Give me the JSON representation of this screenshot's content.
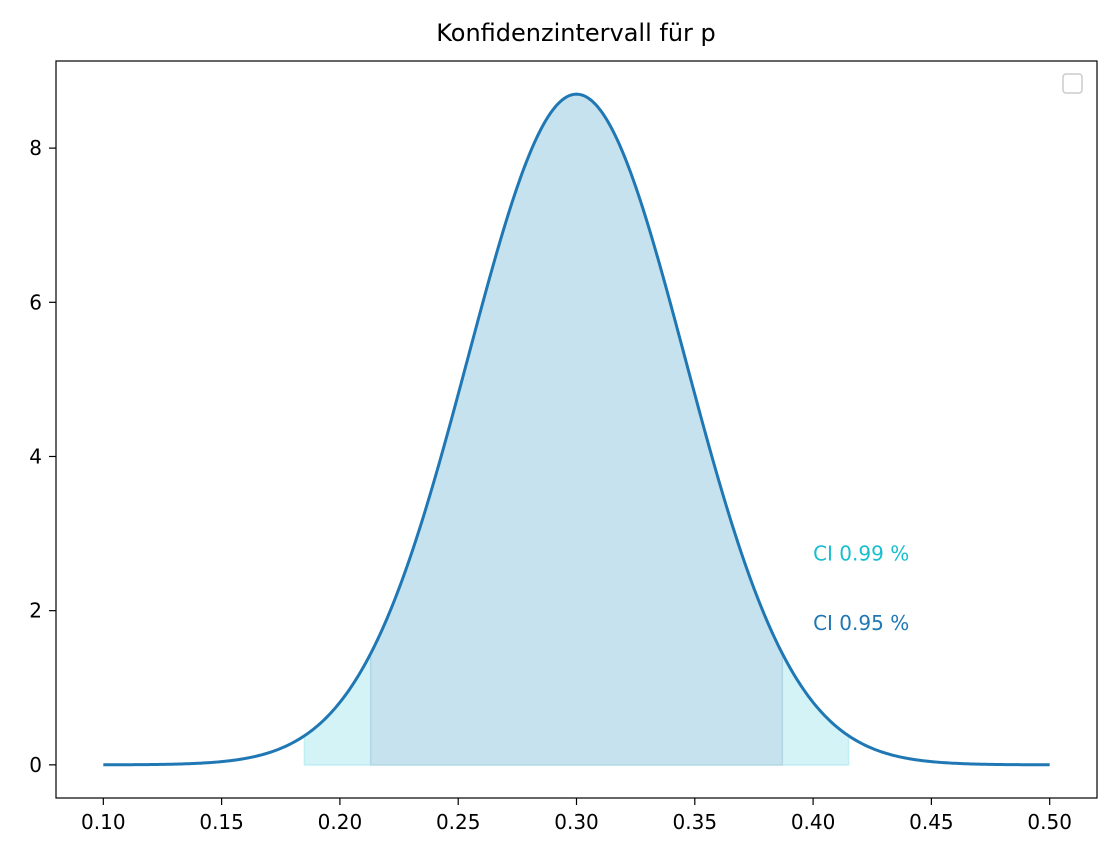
{
  "chart_data": {
    "type": "area",
    "title": "Konfidenzintervall für p",
    "xlabel": "",
    "ylabel": "",
    "xlim": [
      0.08,
      0.52
    ],
    "ylim": [
      -0.43,
      9.13
    ],
    "x_ticks": [
      0.1,
      0.15,
      0.2,
      0.25,
      0.3,
      0.35,
      0.4,
      0.45,
      0.5
    ],
    "x_tick_labels": [
      "0.10",
      "0.15",
      "0.20",
      "0.25",
      "0.30",
      "0.35",
      "0.40",
      "0.45",
      "0.50"
    ],
    "y_ticks": [
      0,
      2,
      4,
      6,
      8
    ],
    "y_tick_labels": [
      "0",
      "2",
      "4",
      "6",
      "8"
    ],
    "grid": false,
    "legend": {
      "position": "top-right",
      "entries": []
    },
    "curve": {
      "distribution": "normal",
      "mean": 0.3,
      "sd": 0.0459,
      "x_start": 0.1,
      "x_end": 0.5,
      "peak": 8.7,
      "color": "#1f77b4"
    },
    "intervals": [
      {
        "label": "CI 0.99 %",
        "x_start": 0.185,
        "x_end": 0.415,
        "fill_color": "#d3f3f7",
        "text_color": "#17becf"
      },
      {
        "label": "CI 0.95 %",
        "x_start": 0.213,
        "x_end": 0.387,
        "fill_color": "#c6e2ee",
        "text_color": "#1f77b4"
      }
    ],
    "annotations": [
      {
        "text": "CI 0.99 %",
        "x": 0.4,
        "y": 2.65,
        "color": "#17becf"
      },
      {
        "text": "CI 0.95 %",
        "x": 0.4,
        "y": 1.75,
        "color": "#1f77b4"
      }
    ]
  }
}
